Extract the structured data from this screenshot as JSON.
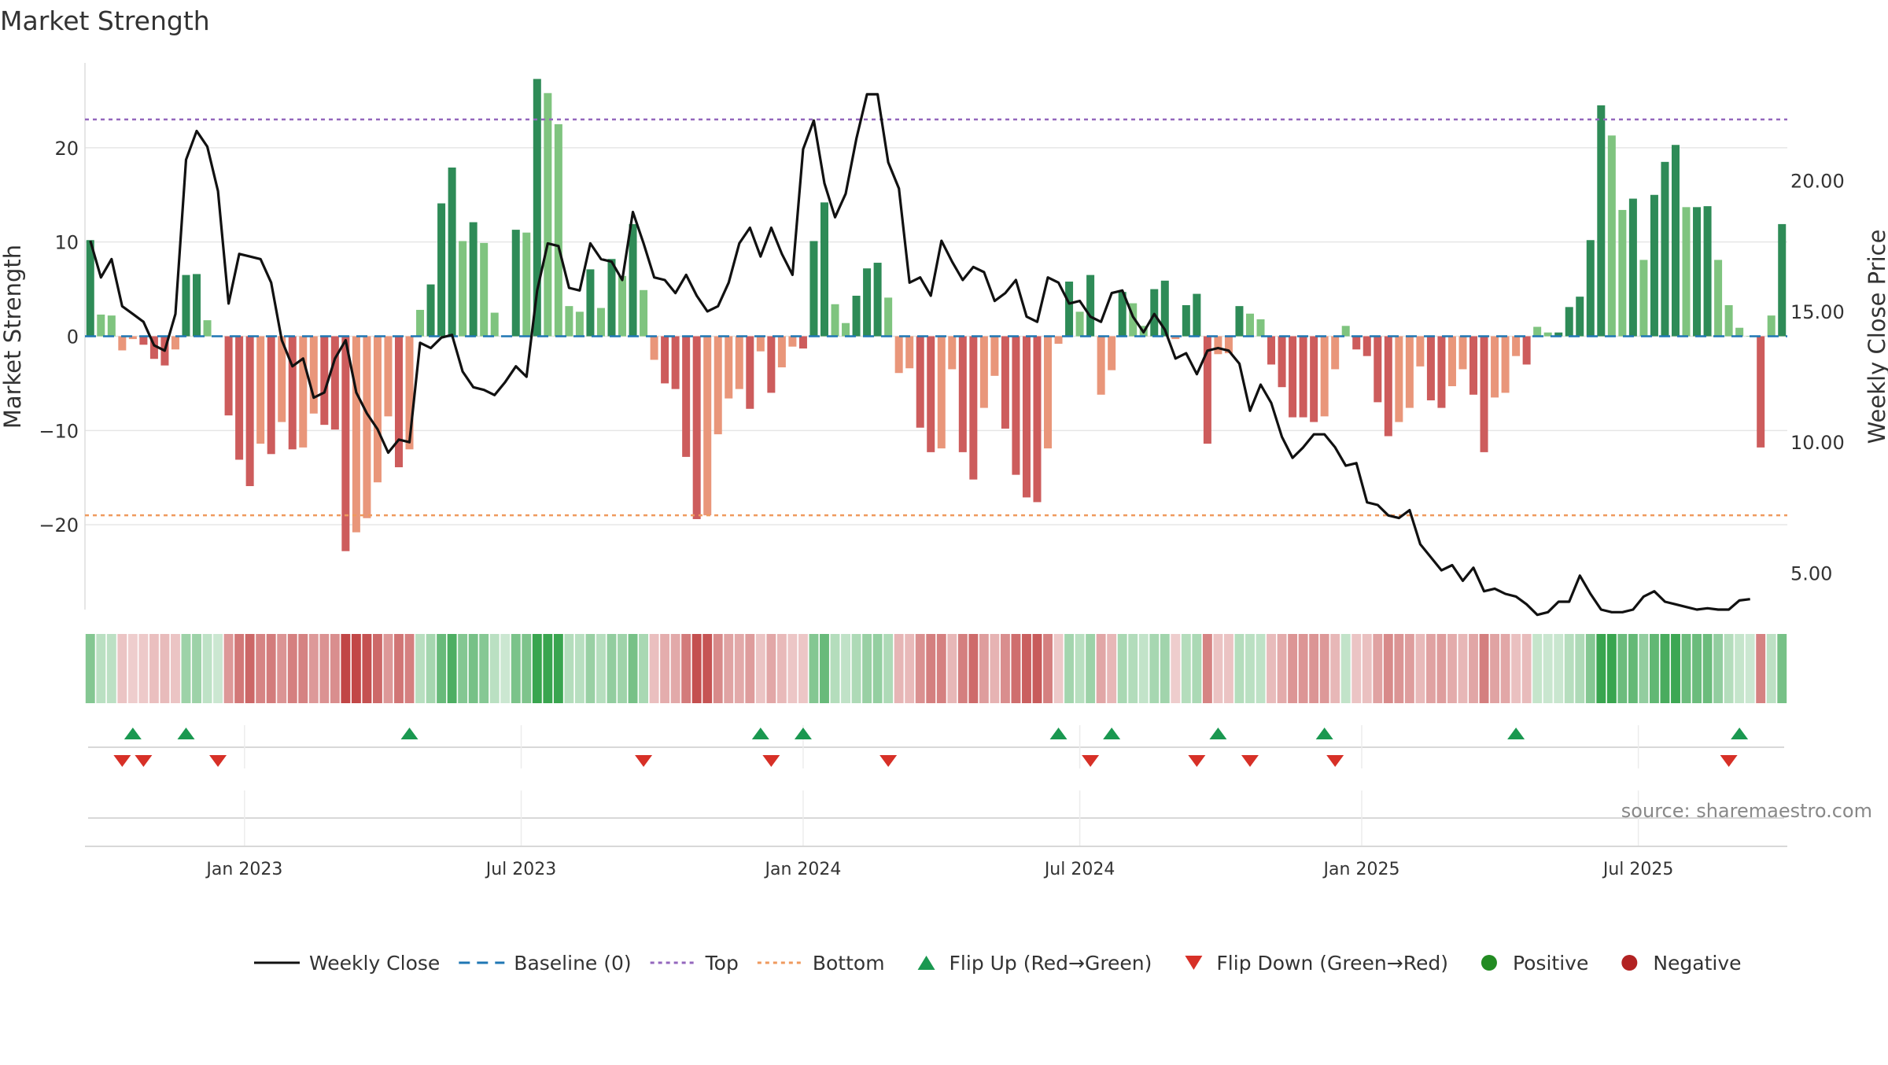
{
  "title": "Market Strength",
  "source": "source: sharemaestro.com",
  "colors": {
    "weekly_close": "#111111",
    "baseline": "#1f77b4",
    "top": "#9467bd",
    "bottom": "#ef9a5e",
    "strong_green": "#2e8b57",
    "light_green": "#7fc47f",
    "strong_red": "#cd5c5c",
    "light_red": "#e9967a",
    "flip_up": "#1a9850",
    "flip_down": "#d73027",
    "positive": "#228b22",
    "negative": "#b22222",
    "grid": "#e6e6e6"
  },
  "legend": [
    {
      "label": "Weekly Close",
      "kind": "line-solid",
      "color": "#111111"
    },
    {
      "label": "Baseline (0)",
      "kind": "line-dash",
      "color": "#1f77b4"
    },
    {
      "label": "Top",
      "kind": "line-dot",
      "color": "#9467bd"
    },
    {
      "label": "Bottom",
      "kind": "line-dot",
      "color": "#ef9a5e"
    },
    {
      "label": "Flip Up (Red→Green)",
      "kind": "tri-up",
      "color": "#1a9850"
    },
    {
      "label": "Flip Down (Green→Red)",
      "kind": "tri-down",
      "color": "#d73027"
    },
    {
      "label": "Positive",
      "kind": "dot",
      "color": "#228b22"
    },
    {
      "label": "Negative",
      "kind": "dot",
      "color": "#b22222"
    }
  ],
  "chart_data": {
    "type": "bar",
    "y_left": {
      "label": "Market Strength",
      "ylim": [
        -29,
        29
      ],
      "ticks": [
        20,
        10,
        0,
        -10,
        -20
      ],
      "tick_labels": [
        "20",
        "10",
        "0",
        "−10",
        "−20"
      ]
    },
    "y_right": {
      "label": "Weekly Close Price",
      "ylim": [
        3.6,
        24.5
      ],
      "ticks": [
        20,
        15,
        10,
        5
      ],
      "tick_labels": [
        "20.00",
        "15.00",
        "10.00",
        "5.00"
      ]
    },
    "x_ticks": [
      {
        "label": "Jan 2023",
        "week": 15
      },
      {
        "label": "Jul 2023",
        "week": 41
      },
      {
        "label": "Jan 2024",
        "week": 67.5
      },
      {
        "label": "Jul 2024",
        "week": 93.5
      },
      {
        "label": "Jan 2025",
        "week": 120
      },
      {
        "label": "Jul 2025",
        "week": 146
      }
    ],
    "top_level": 23,
    "bottom_level": -19,
    "baseline": 0,
    "strength": [
      10.2,
      2.3,
      2.2,
      -1.5,
      -0.3,
      -0.9,
      -2.4,
      -3.1,
      -1.4,
      6.5,
      6.6,
      1.7,
      0,
      -8.4,
      -13.1,
      -15.9,
      -11.4,
      -12.5,
      -9.1,
      -12,
      -11.8,
      -8.2,
      -9.4,
      -9.9,
      -22.8,
      -20.8,
      -19.3,
      -15.5,
      -8.5,
      -13.9,
      -12,
      2.8,
      5.5,
      14.1,
      17.9,
      10.1,
      12.1,
      9.9,
      2.5,
      0,
      11.3,
      11,
      27.3,
      25.8,
      22.5,
      3.2,
      2.6,
      7.1,
      3,
      8.2,
      6.4,
      11.9,
      4.9,
      -2.5,
      -5,
      -5.6,
      -12.8,
      -19.4,
      -19,
      -10.4,
      -6.6,
      -5.6,
      -7.7,
      -1.6,
      -6,
      -3.3,
      -1.1,
      -1.3,
      10.1,
      14.2,
      3.4,
      1.4,
      4.3,
      7.2,
      7.8,
      4.1,
      -3.9,
      -3.4,
      -9.7,
      -12.3,
      -11.9,
      -3.5,
      -12.3,
      -15.2,
      -7.6,
      -4.2,
      -9.8,
      -14.7,
      -17.1,
      -17.6,
      -11.9,
      -0.8,
      5.8,
      2.6,
      6.5,
      -6.2,
      -3.6,
      4.7,
      3.5,
      1.1,
      5,
      5.9,
      -0.3,
      3.3,
      4.5,
      -11.4,
      -1.9,
      -1.8,
      3.2,
      2.4,
      1.8,
      -3,
      -5.4,
      -8.6,
      -8.6,
      -9.1,
      -8.5,
      -3.5,
      1.1,
      -1.4,
      -2.1,
      -7,
      -10.6,
      -9.1,
      -7.6,
      -3.2,
      -6.8,
      -7.6,
      -5.3,
      -3.5,
      -6.2,
      -12.3,
      -6.5,
      -6,
      -2.1,
      -3,
      1,
      0.4,
      0.4,
      3.1,
      4.2,
      10.2,
      24.5,
      21.3,
      13.4,
      14.6,
      8.1,
      15,
      18.5,
      20.3,
      13.7,
      13.7,
      13.8,
      8.1,
      3.3,
      0.9,
      0,
      -11.8,
      2.2,
      11.9
    ],
    "weekly_close": [
      17.7,
      16.3,
      17,
      15.2,
      14.9,
      14.6,
      13.7,
      13.5,
      14.9,
      20.8,
      21.9,
      21.3,
      19.6,
      15.3,
      17.2,
      17.1,
      17,
      16.1,
      13.9,
      12.9,
      13.2,
      11.7,
      11.9,
      13.2,
      13.9,
      11.9,
      11.1,
      10.5,
      9.6,
      10.1,
      10,
      13.8,
      13.6,
      14,
      14.1,
      12.7,
      12.1,
      12,
      11.8,
      12.3,
      12.9,
      12.5,
      15.8,
      17.6,
      17.5,
      15.9,
      15.8,
      17.6,
      17,
      16.9,
      16.2,
      18.8,
      17.6,
      16.3,
      16.2,
      15.7,
      16.4,
      15.6,
      15,
      15.2,
      16.1,
      17.6,
      18.2,
      17.1,
      18.2,
      17.2,
      16.4,
      21.2,
      22.3,
      19.9,
      18.6,
      19.5,
      21.6,
      23.3,
      23.3,
      20.7,
      19.7,
      16.1,
      16.3,
      15.6,
      17.7,
      16.9,
      16.2,
      16.7,
      16.5,
      15.4,
      15.7,
      16.2,
      14.8,
      14.6,
      16.3,
      16.1,
      15.3,
      15.4,
      14.8,
      14.6,
      15.7,
      15.8,
      14.8,
      14.2,
      14.9,
      14.3,
      13.2,
      13.4,
      12.6,
      13.5,
      13.6,
      13.5,
      13,
      11.2,
      12.2,
      11.5,
      10.2,
      9.4,
      9.8,
      10.3,
      10.3,
      9.8,
      9.1,
      9.2,
      7.7,
      7.6,
      7.2,
      7.1,
      7.4,
      6.1,
      5.6,
      5.1,
      5.3,
      4.7,
      5.2,
      4.3,
      4.4,
      4.2,
      4.1,
      3.8,
      3.4,
      3.5,
      3.9,
      3.9,
      4.9,
      4.2,
      3.6,
      3.5,
      3.5,
      3.6,
      4.1,
      4.3,
      3.9,
      3.8,
      3.7,
      3.6,
      3.65,
      3.6,
      3.6,
      3.95,
      4
    ],
    "flip_up_weeks": [
      4,
      9,
      30,
      63,
      67,
      91,
      96,
      106,
      116,
      134,
      155
    ],
    "flip_down_weeks": [
      3,
      5,
      12,
      52,
      64,
      75,
      94,
      104,
      109,
      117,
      154
    ],
    "heat_positive_weeks": "derived from strength sign"
  }
}
